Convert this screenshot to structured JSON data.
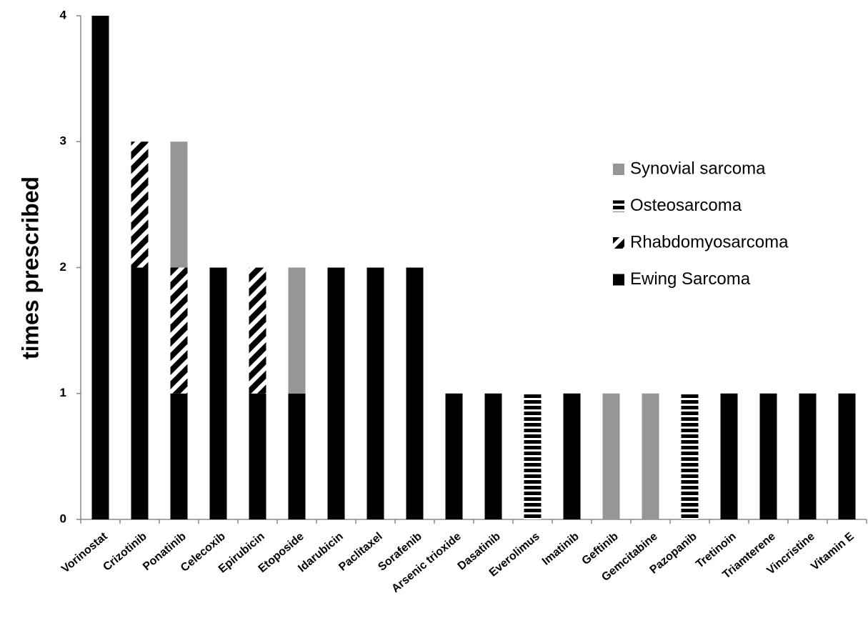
{
  "chart_data": {
    "type": "stacked-bar",
    "y_label": "times prescribed",
    "categories": [
      "Vorinostat",
      "Crizotinib",
      "Ponatinib",
      "Celecoxib",
      "Epirubicin",
      "Etoposide",
      "Idarubicin",
      "Paclitaxel",
      "Sorafenib",
      "Arsenic trioxide",
      "Dasatinib",
      "Everolimus",
      "Imatinib",
      "Geftinib",
      "Gemcitabine",
      "Pazopanib",
      "Tretinoin",
      "Triamterene",
      "Vincristine",
      "Vitamin E"
    ],
    "series": [
      {
        "name": "Ewing Sarcoma",
        "color": "#000000",
        "pattern": "solid",
        "values": [
          4,
          2,
          1,
          2,
          1,
          1,
          2,
          2,
          2,
          1,
          1,
          0,
          1,
          0,
          0,
          0,
          1,
          1,
          1,
          1
        ]
      },
      {
        "name": "Rhabdomyosarcoma",
        "color": "#000000",
        "pattern": "diagonal",
        "values": [
          0,
          1,
          1,
          0,
          1,
          0,
          0,
          0,
          0,
          0,
          0,
          0,
          0,
          0,
          0,
          0,
          0,
          0,
          0,
          0
        ]
      },
      {
        "name": "Osteosarcoma",
        "color": "#000000",
        "pattern": "horizontal",
        "values": [
          0,
          0,
          0,
          0,
          0,
          0,
          0,
          0,
          0,
          0,
          0,
          1,
          0,
          0,
          0,
          1,
          0,
          0,
          0,
          0
        ]
      },
      {
        "name": "Synovial sarcoma",
        "color": "#969696",
        "pattern": "solid",
        "values": [
          0,
          0,
          1,
          0,
          0,
          1,
          0,
          0,
          0,
          0,
          0,
          0,
          0,
          1,
          1,
          0,
          0,
          0,
          0,
          0
        ]
      }
    ],
    "ylim": [
      0,
      4
    ],
    "yticks": [
      0,
      1,
      2,
      3,
      4
    ],
    "grid": false,
    "legend": "right"
  }
}
